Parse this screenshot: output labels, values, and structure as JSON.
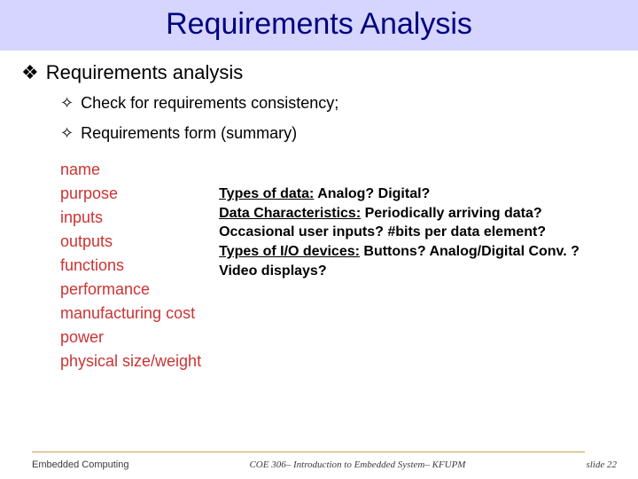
{
  "title": "Requirements Analysis",
  "level1_bullet": "❖",
  "level1_text": "Requirements analysis",
  "level2_bullet": "✧",
  "level2_items": [
    "Check for requirements consistency;",
    "Requirements form (summary)"
  ],
  "terms": [
    "name",
    "purpose",
    "inputs",
    "outputs",
    "functions",
    "performance",
    "manufacturing cost",
    "power",
    "physical size/weight"
  ],
  "desc": [
    {
      "label": "Types of data:",
      "rest": " Analog? Digital?"
    },
    {
      "label": "Data Characteristics:",
      "rest": " Periodically arriving data?"
    },
    {
      "label": "",
      "rest": "Occasional user inputs? #bits per data element?"
    },
    {
      "label": "Types of I/O devices:",
      "rest": " Buttons? Analog/Digital Conv. ?"
    },
    {
      "label": "",
      "rest": "Video displays?"
    }
  ],
  "footer": {
    "left": "Embedded Computing",
    "center": "COE 306– Introduction to Embedded System– KFUPM",
    "right": "slide 22"
  },
  "colors": {
    "title_bg": "#d5d5ff",
    "title_fg": "#000080",
    "term_fg": "#cc3333",
    "footer_line": "#c8a050"
  }
}
